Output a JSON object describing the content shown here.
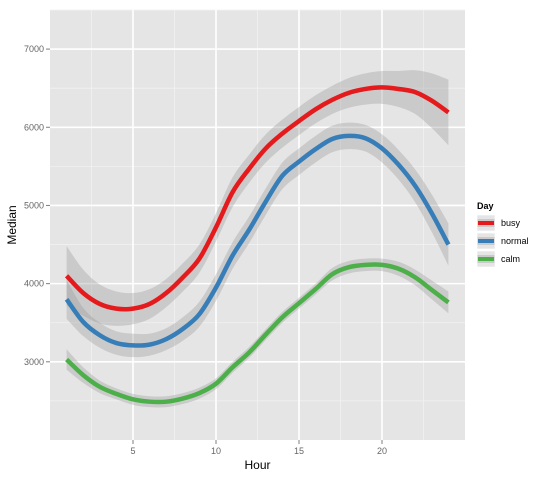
{
  "chart_data": {
    "type": "line",
    "title": "",
    "xlabel": "Hour",
    "ylabel": "Median",
    "xlim": [
      0,
      25
    ],
    "ylim": [
      2000,
      7500
    ],
    "x_ticks": [
      5,
      10,
      15,
      20
    ],
    "y_ticks": [
      3000,
      4000,
      5000,
      6000,
      7000
    ],
    "grid": true,
    "smoothed_with_confidence_band": true,
    "legend": {
      "title": "Day",
      "placement": "right",
      "entries": [
        "busy",
        "normal",
        "calm"
      ]
    },
    "series": [
      {
        "name": "busy",
        "color": "#e41a1c",
        "x": [
          1,
          2,
          3,
          4,
          5,
          6,
          7,
          8,
          9,
          10,
          11,
          12,
          13,
          14,
          15,
          16,
          17,
          18,
          19,
          20,
          21,
          22,
          23,
          24
        ],
        "values": [
          4100,
          3880,
          3740,
          3680,
          3680,
          3740,
          3880,
          4080,
          4320,
          4720,
          5170,
          5470,
          5730,
          5920,
          6080,
          6230,
          6350,
          6440,
          6490,
          6510,
          6490,
          6450,
          6340,
          6190
        ],
        "band": [
          [
            3720,
            4480
          ],
          [
            3590,
            4180
          ],
          [
            3490,
            3990
          ],
          [
            3460,
            3900
          ],
          [
            3480,
            3880
          ],
          [
            3550,
            3930
          ],
          [
            3700,
            4060
          ],
          [
            3900,
            4260
          ],
          [
            4140,
            4500
          ],
          [
            4540,
            4900
          ],
          [
            4980,
            5360
          ],
          [
            5290,
            5650
          ],
          [
            5550,
            5910
          ],
          [
            5740,
            6100
          ],
          [
            5900,
            6260
          ],
          [
            6050,
            6410
          ],
          [
            6170,
            6530
          ],
          [
            6250,
            6630
          ],
          [
            6290,
            6690
          ],
          [
            6300,
            6720
          ],
          [
            6260,
            6720
          ],
          [
            6170,
            6730
          ],
          [
            5990,
            6690
          ],
          [
            5770,
            6610
          ]
        ]
      },
      {
        "name": "normal",
        "color": "#377eb8",
        "x": [
          1,
          2,
          3,
          4,
          5,
          6,
          7,
          8,
          9,
          10,
          11,
          12,
          13,
          14,
          15,
          16,
          17,
          18,
          19,
          20,
          21,
          22,
          23,
          24
        ],
        "values": [
          3800,
          3510,
          3340,
          3240,
          3210,
          3220,
          3290,
          3420,
          3610,
          3950,
          4360,
          4690,
          5050,
          5380,
          5560,
          5720,
          5850,
          5890,
          5860,
          5730,
          5520,
          5250,
          4900,
          4500
        ],
        "band": [
          [
            3550,
            4050
          ],
          [
            3330,
            3690
          ],
          [
            3180,
            3500
          ],
          [
            3090,
            3390
          ],
          [
            3060,
            3360
          ],
          [
            3080,
            3360
          ],
          [
            3150,
            3430
          ],
          [
            3270,
            3570
          ],
          [
            3450,
            3770
          ],
          [
            3780,
            4120
          ],
          [
            4190,
            4530
          ],
          [
            4520,
            4860
          ],
          [
            4880,
            5220
          ],
          [
            5210,
            5550
          ],
          [
            5390,
            5730
          ],
          [
            5550,
            5890
          ],
          [
            5680,
            6020
          ],
          [
            5720,
            6060
          ],
          [
            5690,
            6030
          ],
          [
            5550,
            5910
          ],
          [
            5330,
            5710
          ],
          [
            5040,
            5460
          ],
          [
            4660,
            5140
          ],
          [
            4230,
            4770
          ]
        ]
      },
      {
        "name": "calm",
        "color": "#4daf4a",
        "x": [
          1,
          2,
          3,
          4,
          5,
          6,
          7,
          8,
          9,
          10,
          11,
          12,
          13,
          14,
          15,
          16,
          17,
          18,
          19,
          20,
          21,
          22,
          23,
          24
        ],
        "values": [
          3030,
          2830,
          2680,
          2590,
          2520,
          2490,
          2490,
          2530,
          2600,
          2720,
          2930,
          3120,
          3350,
          3570,
          3750,
          3930,
          4120,
          4210,
          4240,
          4240,
          4190,
          4080,
          3920,
          3760
        ],
        "band": [
          [
            2900,
            3160
          ],
          [
            2730,
            2930
          ],
          [
            2600,
            2760
          ],
          [
            2520,
            2660
          ],
          [
            2450,
            2590
          ],
          [
            2420,
            2560
          ],
          [
            2420,
            2560
          ],
          [
            2460,
            2600
          ],
          [
            2530,
            2670
          ],
          [
            2650,
            2790
          ],
          [
            2860,
            3000
          ],
          [
            3050,
            3190
          ],
          [
            3280,
            3420
          ],
          [
            3500,
            3640
          ],
          [
            3680,
            3820
          ],
          [
            3860,
            4000
          ],
          [
            4040,
            4200
          ],
          [
            4130,
            4290
          ],
          [
            4160,
            4320
          ],
          [
            4160,
            4320
          ],
          [
            4100,
            4280
          ],
          [
            3980,
            4180
          ],
          [
            3800,
            4040
          ],
          [
            3620,
            3900
          ]
        ]
      }
    ]
  }
}
